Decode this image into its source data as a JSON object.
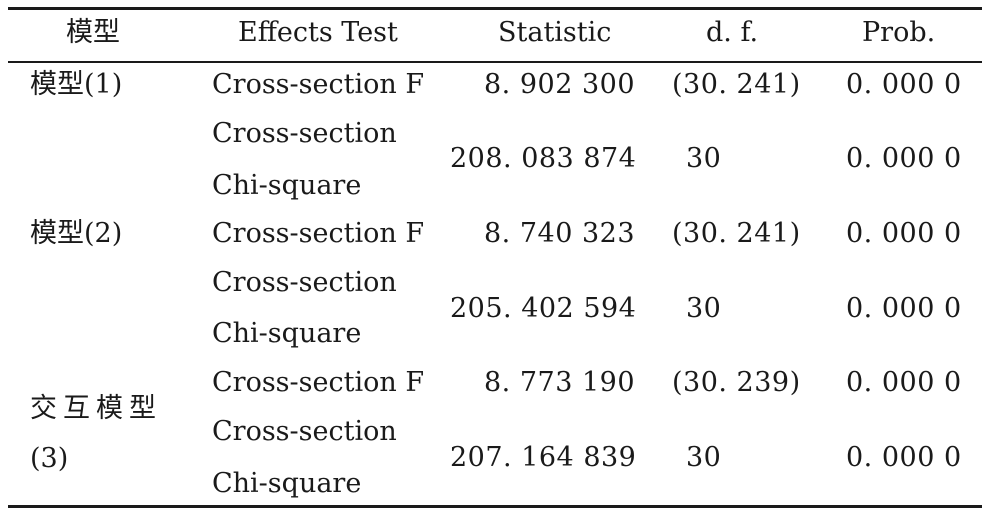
{
  "table": {
    "headers": [
      "模型",
      "Effects Test",
      "Statistic",
      "d. f.",
      "Prob."
    ],
    "rows": [
      {
        "model": "模型(1)",
        "test": "Cross-section F",
        "statistic": "8. 902 300",
        "df": "(30. 241)",
        "prob": "0. 000 0"
      },
      {
        "model": "",
        "test_line1": "Cross-section",
        "test_line2": "Chi-square",
        "statistic": "208. 083 874",
        "df": "30",
        "prob": "0. 000 0"
      },
      {
        "model": "模型(2)",
        "test": "Cross-section F",
        "statistic": "8. 740 323",
        "df": "(30. 241)",
        "prob": "0. 000 0"
      },
      {
        "model": "",
        "test_line1": "Cross-section",
        "test_line2": "Chi-square",
        "statistic": "205. 402 594",
        "df": "30",
        "prob": "0. 000 0"
      },
      {
        "model_line1": "交互模型",
        "model_line2": "(3)",
        "test": "Cross-section F",
        "statistic": "8. 773 190",
        "df": "(30. 239)",
        "prob": "0. 000 0"
      },
      {
        "model": "",
        "test_line1": "Cross-section",
        "test_line2": "Chi-square",
        "statistic": "207. 164 839",
        "df": "30",
        "prob": "0. 000 0"
      }
    ]
  }
}
